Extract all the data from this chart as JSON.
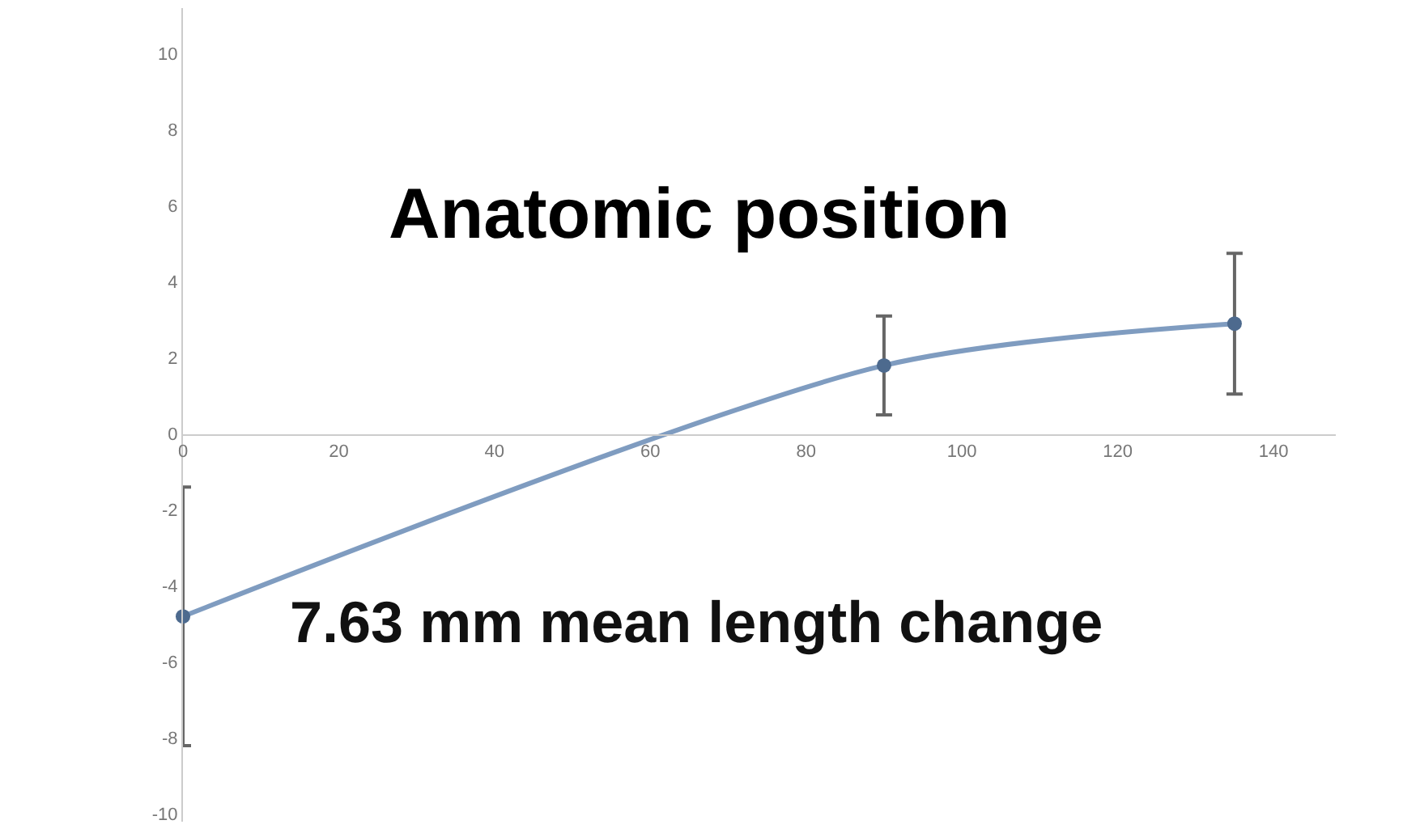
{
  "chart_data": {
    "type": "line",
    "title": "Anatomic position",
    "annotations": [
      "7.63 mm mean length change"
    ],
    "x": [
      0,
      90,
      135
    ],
    "series": [
      {
        "color": "#7f9cc0",
        "values": [
          -4.8,
          1.8,
          2.9
        ],
        "errors": [
          3.4,
          1.3,
          1.85
        ]
      }
    ],
    "marker": "circle",
    "line_style": "solid",
    "xlim": [
      0,
      148
    ],
    "xticks": [
      0,
      20,
      40,
      60,
      80,
      100,
      120,
      140
    ],
    "ylim": [
      -10.2,
      11.2
    ],
    "yticks": [
      -10,
      -8,
      -6,
      -4,
      -2,
      0,
      2,
      4,
      6,
      8,
      10
    ],
    "legend": false
  }
}
